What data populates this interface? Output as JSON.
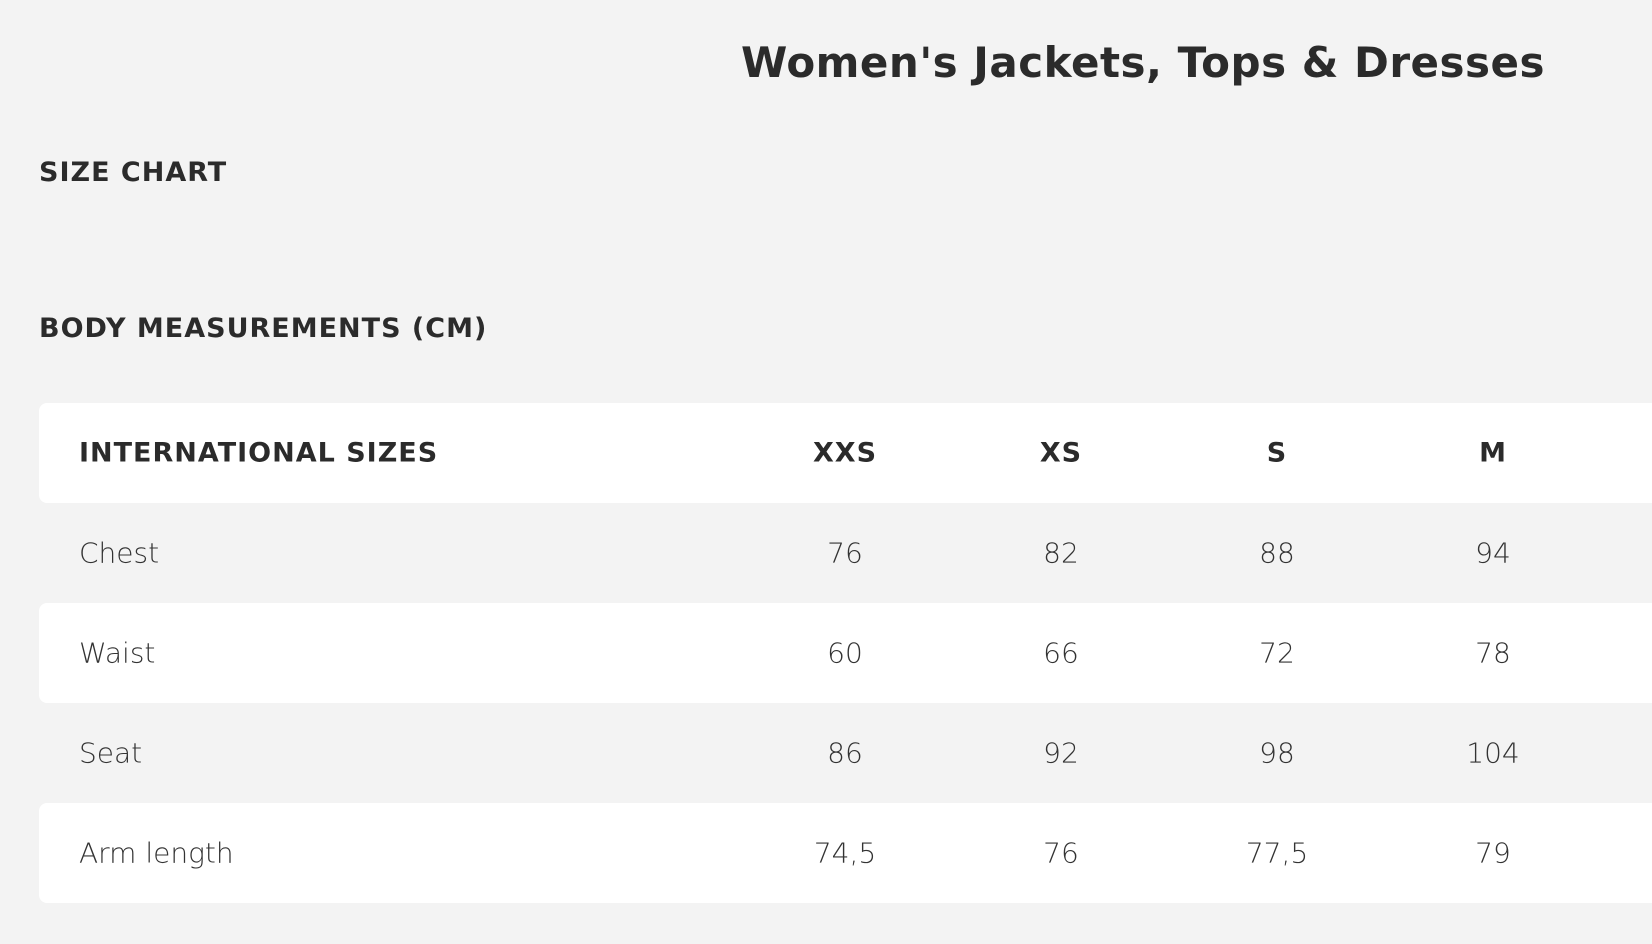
{
  "title": "Women's Jackets, Tops & Dresses",
  "size_chart_heading": "SIZE CHART",
  "section_heading": "BODY MEASUREMENTS (CM)",
  "table": {
    "header": {
      "label": "INTERNATIONAL SIZES",
      "sizes": [
        "XXS",
        "XS",
        "S",
        "M"
      ]
    },
    "rows": [
      {
        "label": "Chest",
        "values": [
          "76",
          "82",
          "88",
          "94"
        ]
      },
      {
        "label": "Waist",
        "values": [
          "60",
          "66",
          "72",
          "78"
        ]
      },
      {
        "label": "Seat",
        "values": [
          "86",
          "92",
          "98",
          "104"
        ]
      },
      {
        "label": "Arm length",
        "values": [
          "74,5",
          "76",
          "77,5",
          "79"
        ]
      }
    ]
  }
}
